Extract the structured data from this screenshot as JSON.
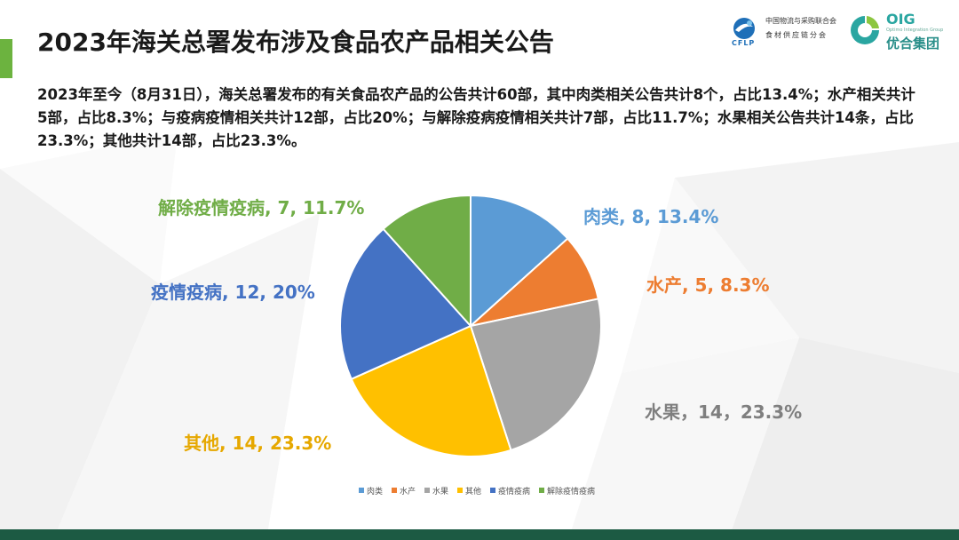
{
  "title": "2023年海关总署发布涉及食品农产品相关公告",
  "summary": "2023年至今（8月31日），海关总署发布的有关食品农产品的公告共计60部，其中肉类相关公告共计8个，占比13.4%；水产相关共计5部，占比8.3%；与疫病疫情相关共计12部，占比20%；与解除疫病疫情相关共计7部，占比11.7%；水果相关公告共计14条，占比23.3%；其他共计14部，占比23.3%。",
  "logos": {
    "cflp_line1": "中国物流与采购联合会",
    "cflp_line2": "食材供应链分会",
    "cflp_mark": "CFLP",
    "oig_name": "OIG",
    "oig_sub": "Optimo Integration Group",
    "oig_cn": "优合集团"
  },
  "colors": {
    "accent": "#6cb33f",
    "band": "#1c5a43"
  },
  "chart_data": {
    "type": "pie",
    "start_angle_deg": 0,
    "direction": "clockwise",
    "legend_position": "bottom",
    "slices": [
      {
        "name": "肉类",
        "value": 8,
        "label": "肉类, 8, 13.4%",
        "color": "#5b9bd5"
      },
      {
        "name": "水产",
        "value": 5,
        "label": "水产, 5, 8.3%",
        "color": "#ed7d31"
      },
      {
        "name": "水果",
        "value": 14,
        "label": "水果，14，23.3%",
        "color": "#a5a5a5"
      },
      {
        "name": "其他",
        "value": 14,
        "label": "其他, 14, 23.3%",
        "color": "#ffc000"
      },
      {
        "name": "疫情疫病",
        "value": 12,
        "label": "疫情疫病, 12, 20%",
        "color": "#4472c4"
      },
      {
        "name": "解除疫情疫病",
        "value": 7,
        "label": "解除疫情疫病, 7, 11.7%",
        "color": "#70ad47"
      }
    ]
  }
}
